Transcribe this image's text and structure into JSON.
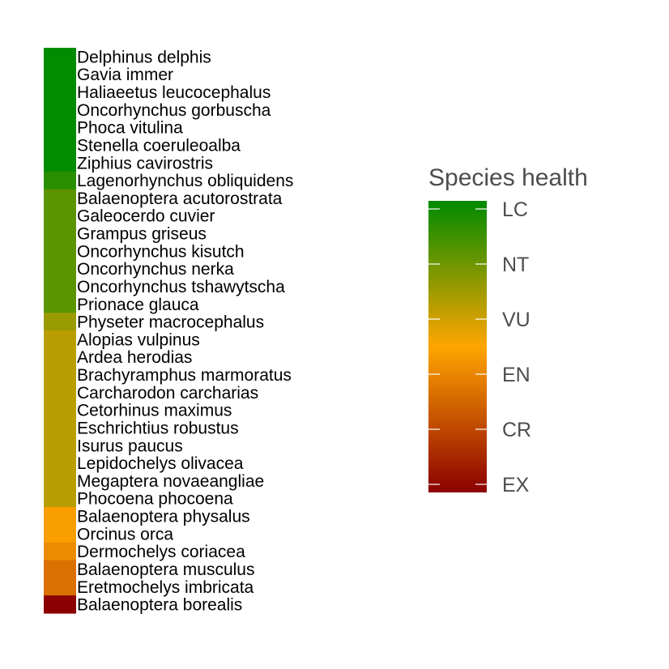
{
  "chart_data": {
    "type": "heatmap",
    "title": "",
    "xlabel": "",
    "ylabel": "",
    "color_scale": {
      "title": "Species health",
      "categories": [
        "EX",
        "CR",
        "EN",
        "VU",
        "NT",
        "LC"
      ],
      "stops": [
        {
          "value": 0.0,
          "color": "#8b0000"
        },
        {
          "value": 0.5,
          "color": "#ffa500"
        },
        {
          "value": 1.0,
          "color": "#008b00"
        }
      ],
      "range": [
        0,
        5
      ]
    },
    "rows": [
      {
        "label": "Delphinus delphis",
        "value": 5.0
      },
      {
        "label": "Gavia immer",
        "value": 5.0
      },
      {
        "label": "Haliaeetus leucocephalus",
        "value": 5.0
      },
      {
        "label": "Oncorhynchus gorbuscha",
        "value": 5.0
      },
      {
        "label": "Phoca vitulina",
        "value": 5.0
      },
      {
        "label": "Stenella coeruleoalba",
        "value": 5.0
      },
      {
        "label": "Ziphius cavirostris",
        "value": 5.0
      },
      {
        "label": "Lagenorhynchus obliquidens",
        "value": 4.6
      },
      {
        "label": "Balaenoptera acutorostrata",
        "value": 4.1
      },
      {
        "label": "Galeocerdo cuvier",
        "value": 4.1
      },
      {
        "label": "Grampus griseus",
        "value": 4.1
      },
      {
        "label": "Oncorhynchus kisutch",
        "value": 4.1
      },
      {
        "label": "Oncorhynchus nerka",
        "value": 4.1
      },
      {
        "label": "Oncorhynchus tshawytscha",
        "value": 4.1
      },
      {
        "label": "Prionace glauca",
        "value": 4.1
      },
      {
        "label": "Physeter macrocephalus",
        "value": 3.5
      },
      {
        "label": "Alopias vulpinus",
        "value": 3.2
      },
      {
        "label": "Ardea herodias",
        "value": 3.2
      },
      {
        "label": "Brachyramphus marmoratus",
        "value": 3.2
      },
      {
        "label": "Carcharodon carcharias",
        "value": 3.2
      },
      {
        "label": "Cetorhinus maximus",
        "value": 3.2
      },
      {
        "label": "Eschrichtius robustus",
        "value": 3.2
      },
      {
        "label": "Isurus paucus",
        "value": 3.2
      },
      {
        "label": "Lepidochelys olivacea",
        "value": 3.2
      },
      {
        "label": "Megaptera novaeangliae",
        "value": 3.2
      },
      {
        "label": "Phocoena phocoena",
        "value": 3.2
      },
      {
        "label": "Balaenoptera physalus",
        "value": 2.4
      },
      {
        "label": "Orcinus orca",
        "value": 2.4
      },
      {
        "label": "Dermochelys coriacea",
        "value": 2.1
      },
      {
        "label": "Balaenoptera musculus",
        "value": 1.7
      },
      {
        "label": "Eretmochelys imbricata",
        "value": 1.7
      },
      {
        "label": "Balaenoptera borealis",
        "value": 0.0
      }
    ]
  }
}
